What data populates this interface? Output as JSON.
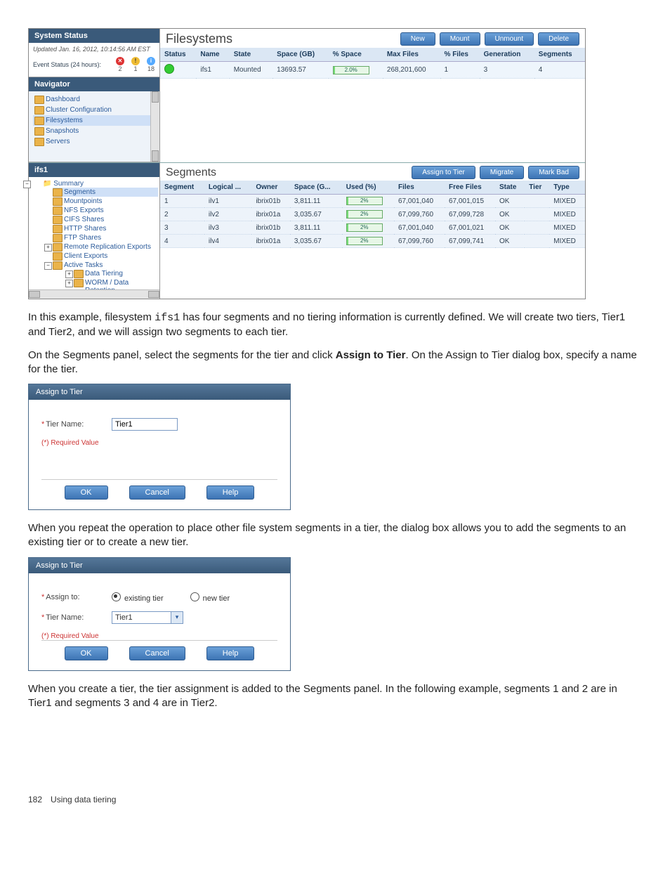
{
  "console": {
    "system_status_title": "System Status",
    "updated_text": "Updated Jan. 16, 2012, 10:14:56 AM EST",
    "event_status_label": "Event Status (24 hours):",
    "event_counts": {
      "error": "2",
      "warn": "1",
      "info": "18"
    },
    "navigator_title": "Navigator",
    "nav_items": [
      "Dashboard",
      "Cluster Configuration",
      "Filesystems",
      "Snapshots",
      "Servers"
    ],
    "filesystems_title": "Filesystems",
    "fs_buttons": [
      "New",
      "Mount",
      "Unmount",
      "Delete"
    ],
    "fs_columns": [
      "Status",
      "Name",
      "State",
      "Space (GB)",
      "% Space",
      "Max Files",
      "% Files",
      "Generation",
      "Segments"
    ],
    "fs_row": {
      "name": "ifs1",
      "state": "Mounted",
      "space": "13693.57",
      "pct_space": "2.0%",
      "max_files": "268,201,600",
      "pct_files": "1",
      "generation": "3",
      "segments": "4"
    },
    "ifs_title": "ifs1",
    "tree": {
      "summary": "Summary",
      "items": [
        "Segments",
        "Mountpoints",
        "NFS Exports",
        "CIFS Shares",
        "HTTP Shares",
        "FTP Shares",
        "Remote Replication Exports",
        "Client Exports",
        "Active Tasks",
        "Data Tiering",
        "WORM / Data Retention"
      ]
    },
    "segments_title": "Segments",
    "seg_buttons": [
      "Assign to Tier",
      "Migrate",
      "Mark Bad"
    ],
    "seg_columns": [
      "Segment",
      "Logical ...",
      "Owner",
      "Space (G...",
      "Used (%)",
      "Files",
      "Free Files",
      "State",
      "Tier",
      "Type"
    ],
    "seg_rows": [
      {
        "seg": "1",
        "lv": "ilv1",
        "owner": "ibrix01b",
        "space": "3,811.11",
        "used": "2%",
        "files": "67,001,040",
        "free": "67,001,015",
        "state": "OK",
        "tier": "",
        "type": "MIXED"
      },
      {
        "seg": "2",
        "lv": "ilv2",
        "owner": "ibrix01a",
        "space": "3,035.67",
        "used": "2%",
        "files": "67,099,760",
        "free": "67,099,728",
        "state": "OK",
        "tier": "",
        "type": "MIXED"
      },
      {
        "seg": "3",
        "lv": "ilv3",
        "owner": "ibrix01b",
        "space": "3,811.11",
        "used": "2%",
        "files": "67,001,040",
        "free": "67,001,021",
        "state": "OK",
        "tier": "",
        "type": "MIXED"
      },
      {
        "seg": "4",
        "lv": "ilv4",
        "owner": "ibrix01a",
        "space": "3,035.67",
        "used": "2%",
        "files": "67,099,760",
        "free": "67,099,741",
        "state": "OK",
        "tier": "",
        "type": "MIXED"
      }
    ]
  },
  "para1_a": "In this example, filesystem ",
  "para1_code": "ifs1",
  "para1_b": " has four segments and no tiering information is currently defined. We will create two tiers, Tier1 and Tier2, and we will assign two segments to each tier.",
  "para2_a": "On the Segments panel, select the segments for the tier and click ",
  "para2_bold": "Assign to Tier",
  "para2_b": ". On the Assign to Tier dialog box, specify a name for the tier.",
  "dialog1": {
    "title": "Assign to Tier",
    "tier_name_label": "Tier Name:",
    "tier_name_value": "Tier1",
    "required": "(*) Required Value",
    "ok": "OK",
    "cancel": "Cancel",
    "help": "Help"
  },
  "para3": "When you repeat the operation to place other file system segments in a tier, the dialog box allows you to add the segments to an existing tier or to create a new tier.",
  "dialog2": {
    "title": "Assign to Tier",
    "assign_to_label": "Assign to:",
    "radio_existing": "existing tier",
    "radio_new": "new tier",
    "tier_name_label": "Tier Name:",
    "tier_name_value": "Tier1",
    "required": "(*) Required Value",
    "ok": "OK",
    "cancel": "Cancel",
    "help": "Help"
  },
  "para4": "When you create a tier, the tier assignment is added to the Segments panel. In the following example, segments 1 and 2 are in Tier1 and segments 3 and 4 are in Tier2.",
  "footer": "182 Using data tiering"
}
